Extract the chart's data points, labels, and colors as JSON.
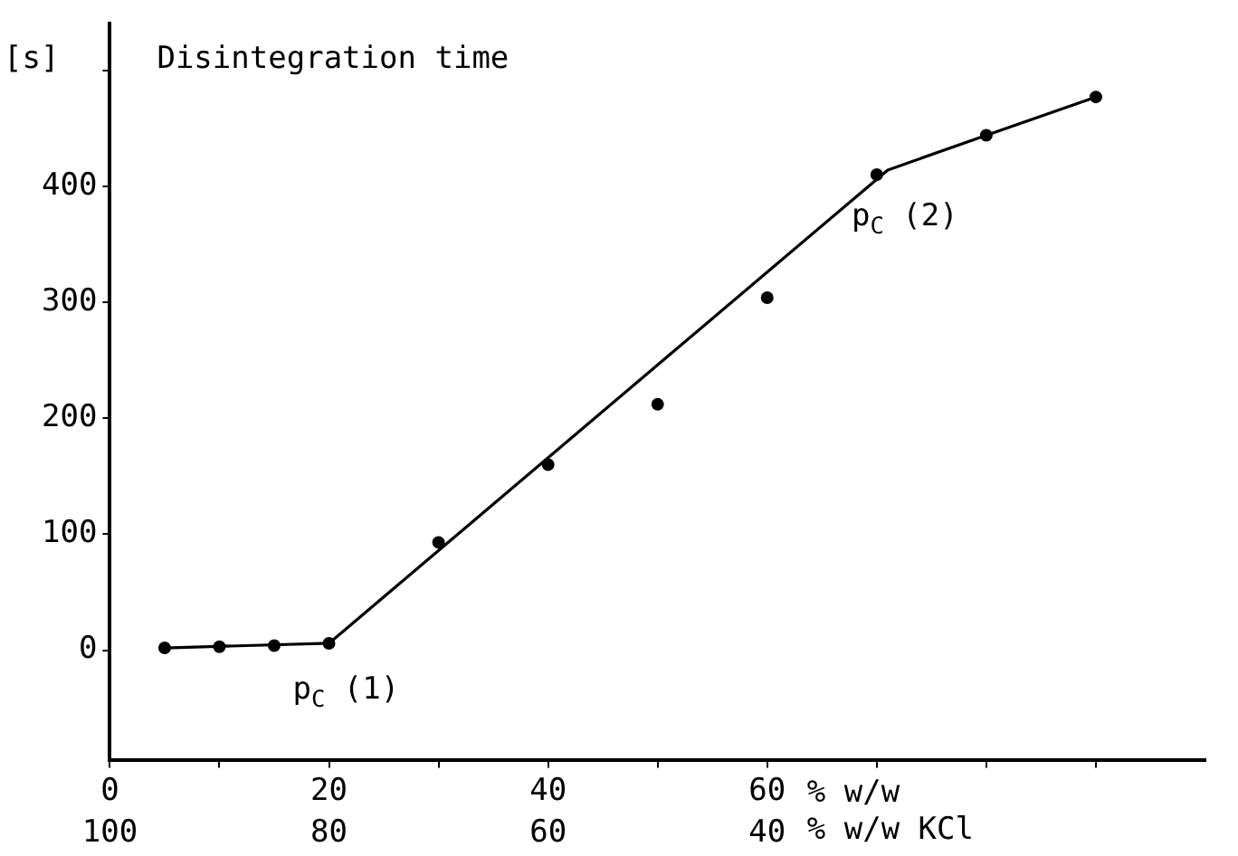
{
  "chart_data": {
    "type": "scatter",
    "title": "Disintegration time",
    "ylabel": "[s]",
    "xlabel": "% w/w",
    "x2label": "% w/w KCl",
    "series": [
      {
        "type": "scatter",
        "color": "#000000",
        "marker": "circle",
        "x": [
          5,
          10,
          15,
          20,
          30,
          40,
          50,
          60,
          70,
          80,
          90
        ],
        "values": [
          2,
          3,
          4,
          6,
          93,
          160,
          212,
          304,
          410,
          444,
          477
        ]
      },
      {
        "type": "line",
        "color": "#000000",
        "marker": "none",
        "line_style": "solid",
        "x": [
          5,
          20,
          71,
          80,
          90
        ],
        "values": [
          2,
          6,
          414,
          444,
          477
        ]
      }
    ],
    "xlim": [
      0,
      100
    ],
    "xticks": [
      0,
      {
        "value": 10,
        "label": null
      },
      20,
      {
        "value": 30,
        "label": null
      },
      40,
      {
        "value": 50,
        "label": null
      },
      60,
      {
        "value": 70,
        "label": null
      },
      {
        "value": 80,
        "label": null
      },
      {
        "value": 90,
        "label": null
      }
    ],
    "x2lim": [
      100,
      0
    ],
    "x2ticks": [
      100,
      80,
      60,
      40
    ],
    "ylim": [
      -95,
      540
    ],
    "yticks": [
      0,
      100,
      200,
      300,
      400,
      {
        "value": 500,
        "label": null
      }
    ],
    "annotations": [
      {
        "text": "p$_{C}$ (1)",
        "x": 20,
        "y": 6
      },
      {
        "text": "p$_{C}$ (2)",
        "x": 71,
        "y": 414
      }
    ],
    "grid": false,
    "legend": false
  }
}
